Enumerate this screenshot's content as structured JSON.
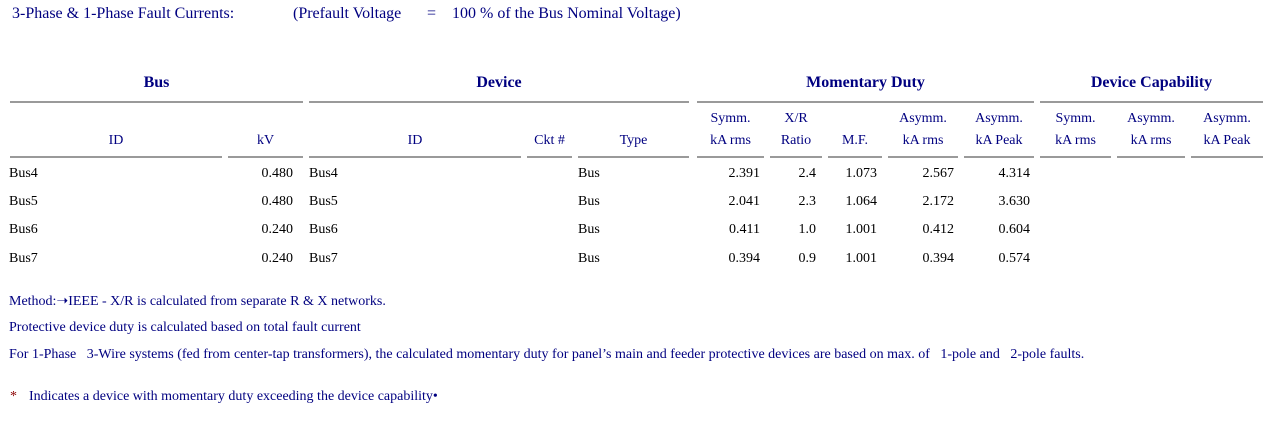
{
  "header": {
    "title": "3-Phase & 1-Phase Fault Currents:",
    "prefault_label": "(Prefault Voltage",
    "equals": "=",
    "prefault_value": "100 % of the Bus Nominal Voltage)"
  },
  "groups": {
    "bus": "Bus",
    "device": "Device",
    "momentary": "Momentary Duty",
    "capability": "Device Capability"
  },
  "columns": {
    "bus_id": "ID",
    "kv": "kV",
    "dev_id": "ID",
    "ckt": "Ckt #",
    "type": "Type",
    "symm_1": "Symm.",
    "symm_2": "kA rms",
    "xr_1": "X/R",
    "xr_2": "Ratio",
    "mf": "M.F.",
    "asym_rms_1": "Asymm.",
    "asym_rms_2": "kA rms",
    "asym_peak_1": "Asymm.",
    "asym_peak_2": "kA Peak",
    "cap_symm_1": "Symm.",
    "cap_symm_2": "kA rms",
    "cap_asym_rms_1": "Asymm.",
    "cap_asym_rms_2": "kA rms",
    "cap_asym_peak_1": "Asymm.",
    "cap_asym_peak_2": "kA Peak"
  },
  "rows": [
    {
      "bus_id": "Bus4",
      "kv": "0.480",
      "dev_id": "Bus4",
      "ckt": "",
      "type": "Bus",
      "symm": "2.391",
      "xr": "2.4",
      "mf": "1.073",
      "asym_rms": "2.567",
      "asym_peak": "4.314"
    },
    {
      "bus_id": "Bus5",
      "kv": "0.480",
      "dev_id": "Bus5",
      "ckt": "",
      "type": "Bus",
      "symm": "2.041",
      "xr": "2.3",
      "mf": "1.064",
      "asym_rms": "2.172",
      "asym_peak": "3.630"
    },
    {
      "bus_id": "Bus6",
      "kv": "0.240",
      "dev_id": "Bus6",
      "ckt": "",
      "type": "Bus",
      "symm": "0.411",
      "xr": "1.0",
      "mf": "1.001",
      "asym_rms": "0.412",
      "asym_peak": "0.604"
    },
    {
      "bus_id": "Bus7",
      "kv": "0.240",
      "dev_id": "Bus7",
      "ckt": "",
      "type": "Bus",
      "symm": "0.394",
      "xr": "0.9",
      "mf": "1.001",
      "asym_rms": "0.394",
      "asym_peak": "0.574"
    }
  ],
  "notes": {
    "method_label": "Method:",
    "method_arrow": "➝",
    "method_text": "IEEE - X/R is calculated from separate R & X networks.",
    "protective": "Protective device duty is calculated based on total fault current",
    "one_phase": "For 1-Phase   3-Wire systems (fed from center-tap transformers), the calculated momentary duty for panel’s main and feeder protective devices are based on max. of   1-pole and   2-pole faults.",
    "star": "*",
    "indicates": "Indicates a device with momentary duty exceeding the device capability",
    "indicates_dot": "•"
  }
}
